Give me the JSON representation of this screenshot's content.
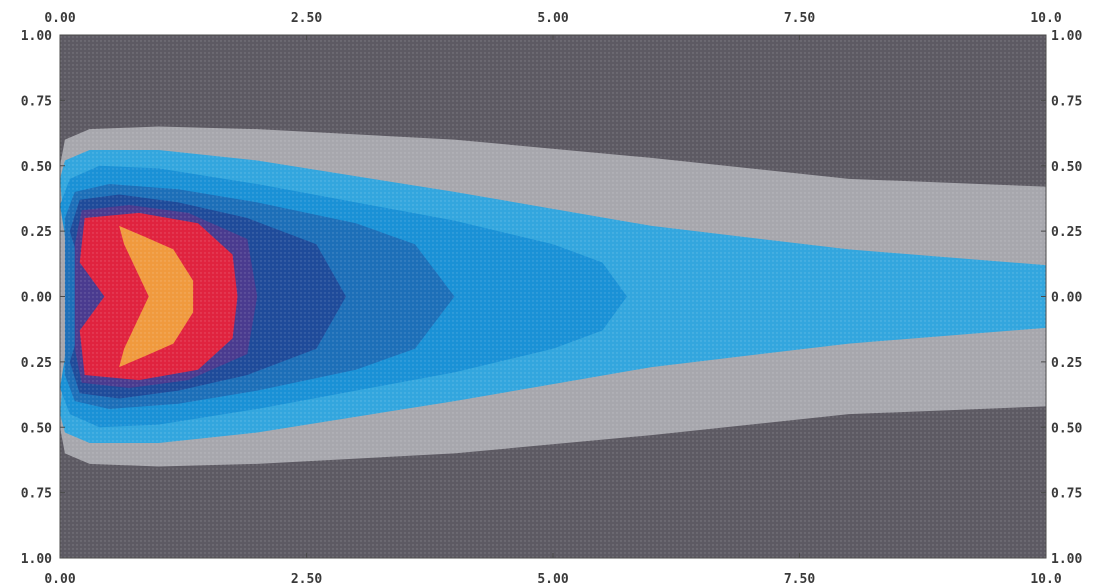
{
  "chart_data": {
    "type": "heatmap",
    "title": "",
    "xlabel": "",
    "ylabel": "",
    "xlim": [
      0,
      10
    ],
    "ylim": [
      -1,
      1
    ],
    "grid": false,
    "x_ticks": [
      "0.00",
      "2.50",
      "5.00",
      "7.50",
      "10.0"
    ],
    "y_ticks_left": [
      "1.00",
      "0.75",
      "0.50",
      "0.25",
      "0.00",
      "0.25",
      "0.50",
      "0.75",
      "1.00"
    ],
    "y_ticks_right": [
      "1.00",
      "0.75",
      "0.50",
      "0.25",
      "0.00",
      "0.25",
      "0.50",
      "0.75",
      "1.00"
    ],
    "levels": [
      {
        "level": 0,
        "color": "#5d5a63",
        "half_width": [
          [
            0,
            1.0
          ],
          [
            10,
            1.0
          ]
        ]
      },
      {
        "level": 1,
        "color": "#a7a7ad",
        "half_width": [
          [
            0,
            0.5
          ],
          [
            0.05,
            0.6
          ],
          [
            0.3,
            0.64
          ],
          [
            1.0,
            0.65
          ],
          [
            2.0,
            0.64
          ],
          [
            4.0,
            0.6
          ],
          [
            6.0,
            0.53
          ],
          [
            8.0,
            0.45
          ],
          [
            10.0,
            0.42
          ]
        ]
      },
      {
        "level": 2,
        "color": "#33a6de",
        "half_width": [
          [
            0,
            0.45
          ],
          [
            0.05,
            0.52
          ],
          [
            0.3,
            0.56
          ],
          [
            1.0,
            0.56
          ],
          [
            2.0,
            0.52
          ],
          [
            4.0,
            0.4
          ],
          [
            6.0,
            0.27
          ],
          [
            8.0,
            0.18
          ],
          [
            10.0,
            0.12
          ]
        ]
      },
      {
        "level": 3,
        "color": "#1a91d6",
        "half_width": [
          [
            0,
            0.35
          ],
          [
            0.1,
            0.45
          ],
          [
            0.4,
            0.5
          ],
          [
            1.0,
            0.49
          ],
          [
            2.0,
            0.43
          ],
          [
            3.0,
            0.36
          ],
          [
            4.0,
            0.29
          ],
          [
            5.0,
            0.2
          ],
          [
            5.5,
            0.13
          ],
          [
            5.75,
            0.0
          ]
        ]
      },
      {
        "level": 4,
        "color": "#1d6fb8",
        "half_width": [
          [
            0.05,
            0.3
          ],
          [
            0.15,
            0.4
          ],
          [
            0.5,
            0.43
          ],
          [
            1.2,
            0.41
          ],
          [
            2.0,
            0.36
          ],
          [
            3.0,
            0.28
          ],
          [
            3.6,
            0.2
          ],
          [
            4.0,
            0.0
          ]
        ]
      },
      {
        "level": 5,
        "color": "#1f4b9a",
        "half_width": [
          [
            0.1,
            0.25
          ],
          [
            0.2,
            0.37
          ],
          [
            0.6,
            0.39
          ],
          [
            1.2,
            0.36
          ],
          [
            1.9,
            0.3
          ],
          [
            2.6,
            0.2
          ],
          [
            2.9,
            0.0
          ]
        ]
      },
      {
        "level": 6,
        "color": "#4a3b8f",
        "half_width": [
          [
            0.15,
            0.2
          ],
          [
            0.22,
            0.33
          ],
          [
            0.7,
            0.35
          ],
          [
            1.3,
            0.32
          ],
          [
            1.9,
            0.22
          ],
          [
            2.0,
            0.0
          ]
        ]
      },
      {
        "level": 7,
        "color": "#e0233f",
        "half_width": [
          [
            0.2,
            0.13
          ],
          [
            0.25,
            0.3
          ],
          [
            0.8,
            0.32
          ],
          [
            1.4,
            0.28
          ],
          [
            1.75,
            0.16
          ],
          [
            1.8,
            0.0
          ]
        ]
      },
      {
        "level": 8,
        "color": "#f09a3e",
        "half_width": [
          [
            0.65,
            0.2
          ],
          [
            0.6,
            0.27
          ],
          [
            0.85,
            0.23
          ],
          [
            1.15,
            0.18
          ],
          [
            1.35,
            0.06
          ],
          [
            1.35,
            0.0
          ]
        ]
      }
    ],
    "inner_cut": [
      {
        "level": 2,
        "points": [
          [
            0.05,
            0.2
          ],
          [
            0.1,
            0.0
          ]
        ]
      },
      {
        "level": 3,
        "points": [
          [
            0.12,
            0.22
          ],
          [
            0.15,
            0.0
          ]
        ]
      },
      {
        "level": 5,
        "points": [
          [
            0.25,
            0.2
          ],
          [
            0.3,
            0.0
          ]
        ]
      },
      {
        "level": 7,
        "points": [
          [
            0.4,
            0.24
          ],
          [
            0.45,
            0.0
          ]
        ]
      },
      {
        "level": 8,
        "points": [
          [
            0.9,
            0.14
          ],
          [
            0.9,
            0.0
          ]
        ]
      }
    ]
  }
}
